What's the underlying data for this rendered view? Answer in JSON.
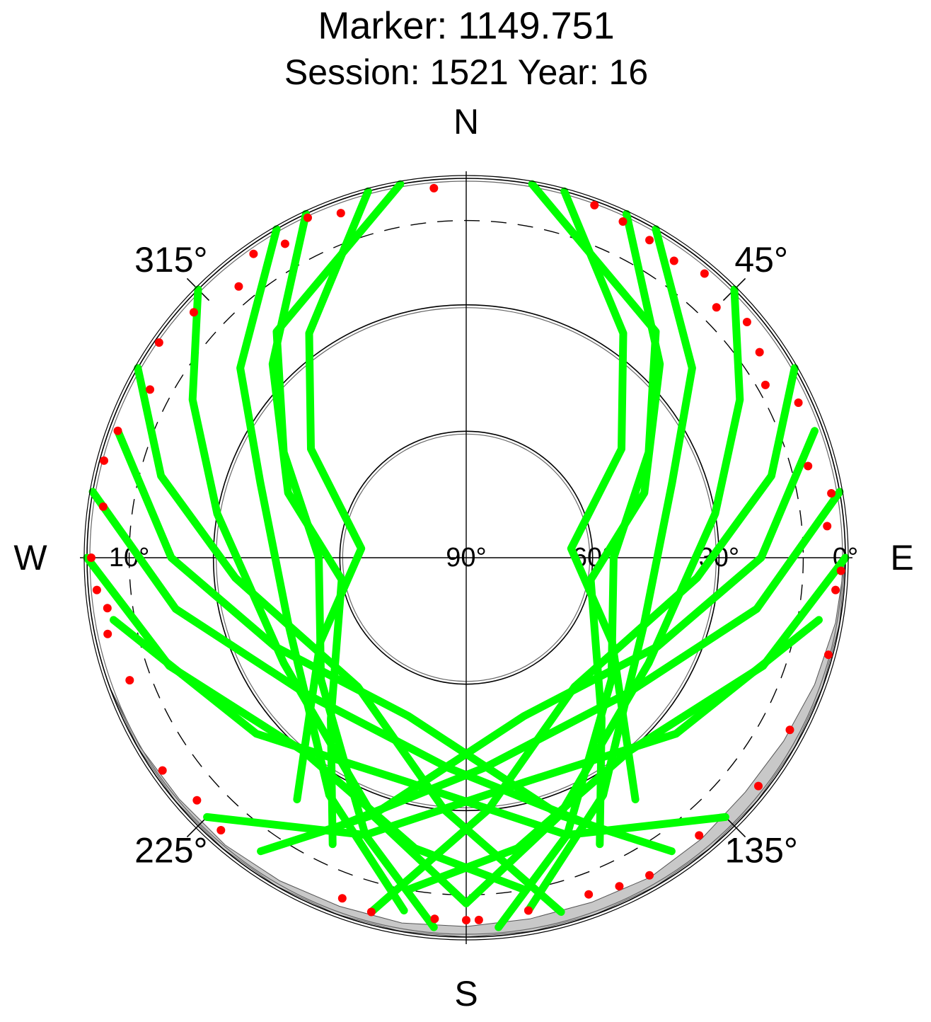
{
  "chart_data": {
    "type": "polar",
    "title": "Marker: 1149.751",
    "subtitle": "Session: 1521 Year: 16",
    "directions": [
      "N",
      "E",
      "S",
      "W"
    ],
    "azimuth_ticks": [
      {
        "value": 45,
        "label": "45°"
      },
      {
        "value": 135,
        "label": "135°"
      },
      {
        "value": 225,
        "label": "225°"
      },
      {
        "value": 315,
        "label": "315°"
      }
    ],
    "rlim": [
      90,
      0
    ],
    "elevation_ticks": [
      {
        "value": 90,
        "label": "90°"
      },
      {
        "value": 60,
        "label": "60°"
      },
      {
        "value": 30,
        "label": "30°"
      },
      {
        "value": 0,
        "label": "0°"
      }
    ],
    "cutoff": {
      "value": 10,
      "label": "10°"
    },
    "horizon_mask": {
      "color": "#c8c8c8",
      "x": [
        90,
        100,
        110,
        120,
        130,
        140,
        150,
        160,
        170,
        180,
        190,
        200,
        210,
        220,
        230,
        240,
        250
      ],
      "values": [
        0,
        1,
        2,
        3,
        3.5,
        3,
        2.5,
        3,
        3,
        2.5,
        2,
        2,
        1.5,
        1,
        1,
        0.5,
        0
      ]
    },
    "series": [
      {
        "color": "#00ff00",
        "x": [
          10,
          40,
          60,
          90,
          130,
          160,
          175
        ],
        "values": [
          0,
          20,
          40,
          55,
          45,
          20,
          2
        ]
      },
      {
        "color": "#00ff00",
        "x": [
          350,
          320,
          300,
          270,
          230,
          200,
          185
        ],
        "values": [
          0,
          20,
          40,
          55,
          45,
          20,
          2
        ]
      },
      {
        "color": "#00ff00",
        "x": [
          30,
          50,
          70,
          110,
          150,
          170
        ],
        "values": [
          0,
          20,
          38,
          45,
          25,
          5
        ]
      },
      {
        "color": "#00ff00",
        "x": [
          330,
          310,
          290,
          250,
          210,
          190
        ],
        "values": [
          0,
          20,
          38,
          45,
          25,
          5
        ]
      },
      {
        "color": "#00ff00",
        "x": [
          45,
          60,
          80,
          120,
          160,
          180
        ],
        "values": [
          0,
          15,
          30,
          40,
          25,
          8
        ]
      },
      {
        "color": "#00ff00",
        "x": [
          315,
          300,
          280,
          240,
          200,
          180
        ],
        "values": [
          0,
          15,
          30,
          40,
          25,
          8
        ]
      },
      {
        "color": "#00ff00",
        "x": [
          60,
          75,
          95,
          140,
          175,
          195
        ],
        "values": [
          0,
          15,
          35,
          50,
          30,
          3
        ]
      },
      {
        "color": "#00ff00",
        "x": [
          300,
          285,
          265,
          220,
          185,
          165
        ],
        "values": [
          0,
          15,
          35,
          50,
          30,
          3
        ]
      },
      {
        "color": "#00ff00",
        "x": [
          70,
          90,
          115,
          160,
          200,
          215
        ],
        "values": [
          2,
          20,
          40,
          50,
          25,
          5
        ]
      },
      {
        "color": "#00ff00",
        "x": [
          290,
          270,
          245,
          200,
          160,
          145
        ],
        "values": [
          2,
          20,
          40,
          50,
          25,
          5
        ]
      },
      {
        "color": "#00ff00",
        "x": [
          270,
          250,
          220,
          190,
          170
        ],
        "values": [
          0,
          15,
          30,
          20,
          10
        ]
      },
      {
        "color": "#00ff00",
        "x": [
          90,
          110,
          140,
          170,
          190
        ],
        "values": [
          0,
          15,
          30,
          20,
          10
        ]
      },
      {
        "color": "#00ff00",
        "x": [
          25,
          45,
          70,
          100,
          140,
          155
        ],
        "values": [
          0,
          25,
          45,
          60,
          40,
          15
        ]
      },
      {
        "color": "#00ff00",
        "x": [
          335,
          315,
          290,
          260,
          220,
          205
        ],
        "values": [
          0,
          25,
          45,
          60,
          40,
          15
        ]
      },
      {
        "color": "#00ff00",
        "x": [
          100,
          130,
          165,
          200,
          225
        ],
        "values": [
          5,
          25,
          35,
          20,
          3
        ]
      },
      {
        "color": "#00ff00",
        "x": [
          260,
          230,
          195,
          160,
          135
        ],
        "values": [
          5,
          25,
          35,
          20,
          3
        ]
      },
      {
        "color": "#00ff00",
        "x": [
          15,
          35,
          55,
          85,
          120,
          145
        ],
        "values": [
          0,
          25,
          45,
          65,
          50,
          20
        ]
      },
      {
        "color": "#00ff00",
        "x": [
          345,
          325,
          305,
          275,
          240,
          215
        ],
        "values": [
          0,
          25,
          45,
          65,
          50,
          20
        ]
      },
      {
        "color": "#00ff00",
        "x": [
          80,
          100,
          130,
          175,
          205
        ],
        "values": [
          0,
          20,
          40,
          40,
          20
        ]
      },
      {
        "color": "#00ff00",
        "x": [
          280,
          260,
          230,
          185,
          155
        ],
        "values": [
          0,
          20,
          40,
          40,
          20
        ]
      }
    ],
    "low_points": {
      "color": "#ff0000",
      "x": [
        355,
        340,
        335,
        330,
        325,
        320,
        312,
        305,
        298,
        290,
        285,
        278,
        270,
        265,
        262,
        258,
        250,
        235,
        228,
        222,
        200,
        195,
        185,
        180,
        178,
        170,
        160,
        155,
        150,
        140,
        128,
        118,
        105,
        95,
        92,
        85,
        80,
        75,
        65,
        60,
        55,
        50,
        45,
        40,
        35,
        30,
        25,
        20
      ],
      "values": [
        2,
        3,
        1,
        4,
        2,
        6,
        3,
        1,
        5,
        2,
        1,
        3,
        1,
        2,
        4,
        3,
        5,
        2,
        4,
        3,
        4,
        3,
        4,
        4,
        4,
        5,
        5,
        4,
        3,
        4,
        2,
        3,
        1,
        2,
        1,
        4,
        2,
        6,
        3,
        8,
        5,
        3,
        6,
        2,
        4,
        3,
        2,
        1
      ]
    }
  }
}
